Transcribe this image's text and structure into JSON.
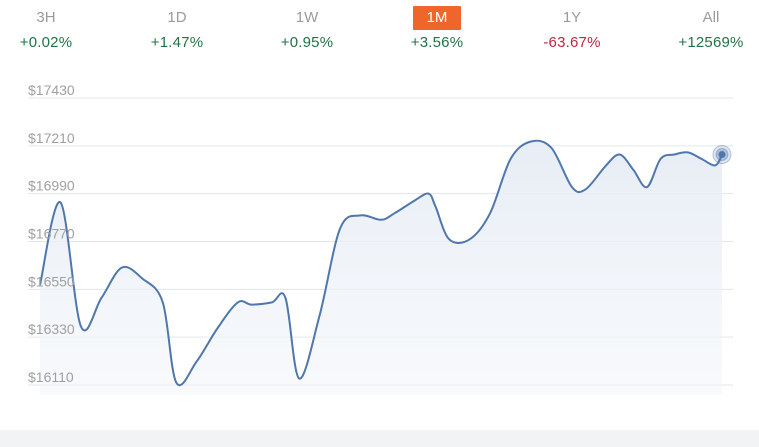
{
  "tabs": [
    {
      "label": "3H",
      "change": "+0.02%",
      "trend": "up"
    },
    {
      "label": "1D",
      "change": "+1.47%",
      "trend": "up"
    },
    {
      "label": "1W",
      "change": "+0.95%",
      "trend": "up"
    },
    {
      "label": "1M",
      "change": "+3.56%",
      "trend": "up",
      "active": true
    },
    {
      "label": "1Y",
      "change": "-63.67%",
      "trend": "down"
    },
    {
      "label": "All",
      "change": "+12569%",
      "trend": "up"
    }
  ],
  "colors": {
    "up": "#217346",
    "down": "#c0263f",
    "active_tab_bg": "#f0652b",
    "line": "#4f77ac",
    "grid": "#e3e6ea",
    "tick_text": "#a0a0a0"
  },
  "chart_data": {
    "type": "area",
    "title": "",
    "xlabel": "",
    "ylabel": "",
    "y_tick_labels": [
      "$17430",
      "$17210",
      "$16990",
      "$16770",
      "$16550",
      "$16330",
      "$16110"
    ],
    "y_ticks": [
      17430,
      17210,
      16990,
      16770,
      16550,
      16330,
      16110
    ],
    "ylim": [
      16100,
      17470
    ],
    "grid": true,
    "legend": "none",
    "series": [
      {
        "x": [
          0,
          3,
          6,
          9,
          12,
          15,
          18,
          20,
          23,
          26,
          29,
          31,
          34,
          36,
          38,
          41,
          44,
          47,
          50,
          52,
          55,
          57,
          58,
          60,
          63,
          66,
          69,
          72,
          75,
          78,
          80,
          83,
          85,
          87,
          89,
          91,
          93,
          95,
          97,
          99,
          100
        ],
        "y": [
          16570,
          16950,
          16380,
          16510,
          16650,
          16600,
          16490,
          16120,
          16220,
          16370,
          16490,
          16480,
          16490,
          16510,
          16140,
          16430,
          16830,
          16890,
          16870,
          16900,
          16960,
          16990,
          16930,
          16780,
          16780,
          16900,
          17150,
          17230,
          17200,
          17020,
          17010,
          17120,
          17170,
          17100,
          17020,
          17150,
          17170,
          17180,
          17150,
          17120,
          17170
        ]
      }
    ],
    "last_value_marker": true
  }
}
